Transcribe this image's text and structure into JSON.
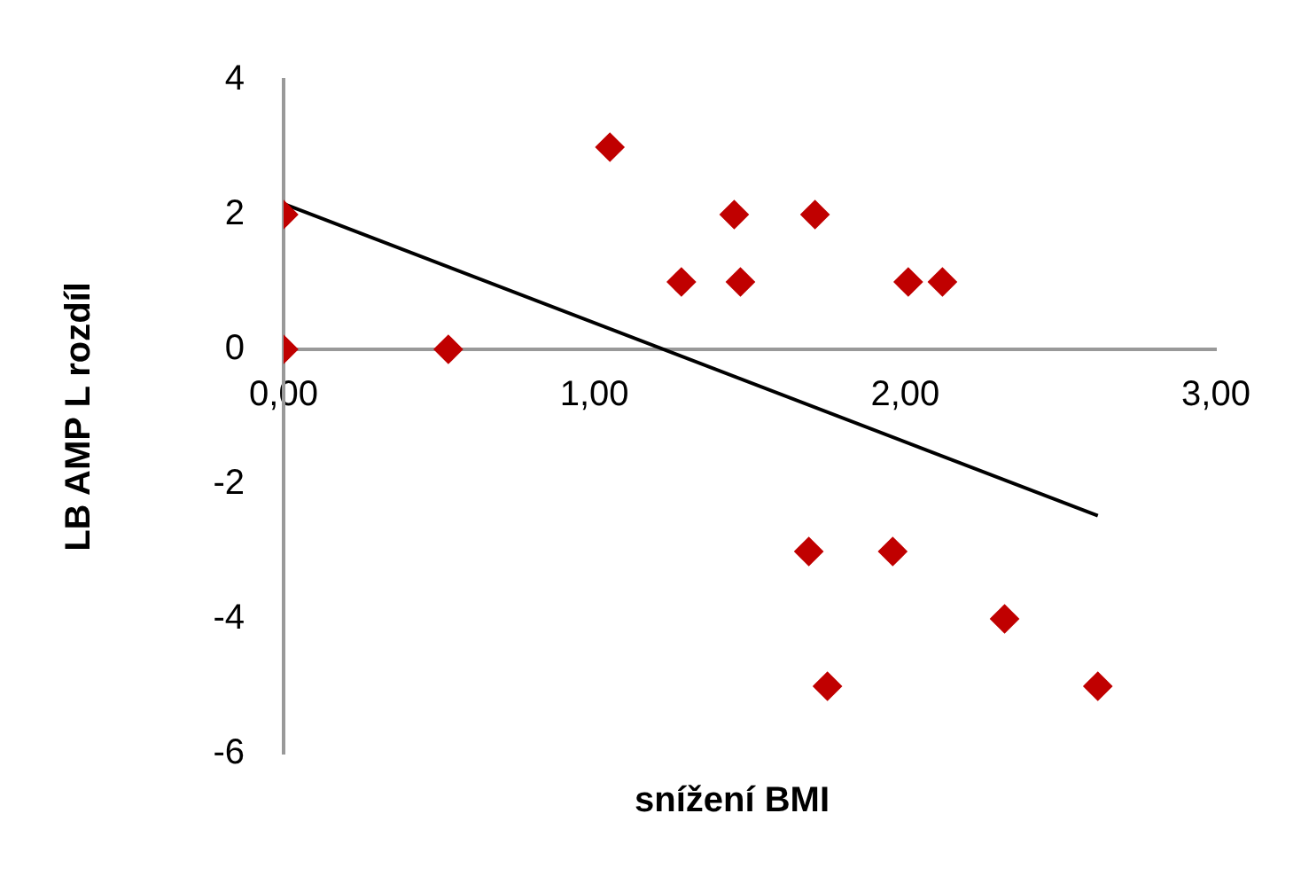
{
  "chart_data": {
    "type": "scatter",
    "xlabel": "snížení BMI",
    "ylabel": "LB AMP L rozdíl",
    "xlim": [
      0,
      3
    ],
    "xticks": [
      {
        "value": 0,
        "label": "0,00"
      },
      {
        "value": 1,
        "label": "1,00"
      },
      {
        "value": 2,
        "label": "2,00"
      },
      {
        "value": 3,
        "label": "3,00"
      }
    ],
    "ylim": [
      -6,
      4
    ],
    "yticks": [
      -6,
      -4,
      -2,
      0,
      2,
      4
    ],
    "grid": false,
    "legend": false,
    "marker": "diamond",
    "series": [
      {
        "type": "scatter",
        "color": "#c00000",
        "x": [
          0,
          0,
          0.53,
          1.05,
          1.28,
          1.45,
          1.47,
          1.71,
          2.01,
          2.12,
          1.69,
          1.96,
          2.32,
          1.75,
          2.62
        ],
        "values": [
          2,
          0,
          0,
          3,
          1,
          2,
          1,
          2,
          1,
          1,
          -3,
          -3,
          -4,
          -5,
          -5
        ]
      },
      {
        "type": "line",
        "color": "#000000",
        "marker": "none",
        "x": [
          0,
          2.62
        ],
        "values": [
          2.16,
          -2.47
        ]
      }
    ]
  }
}
